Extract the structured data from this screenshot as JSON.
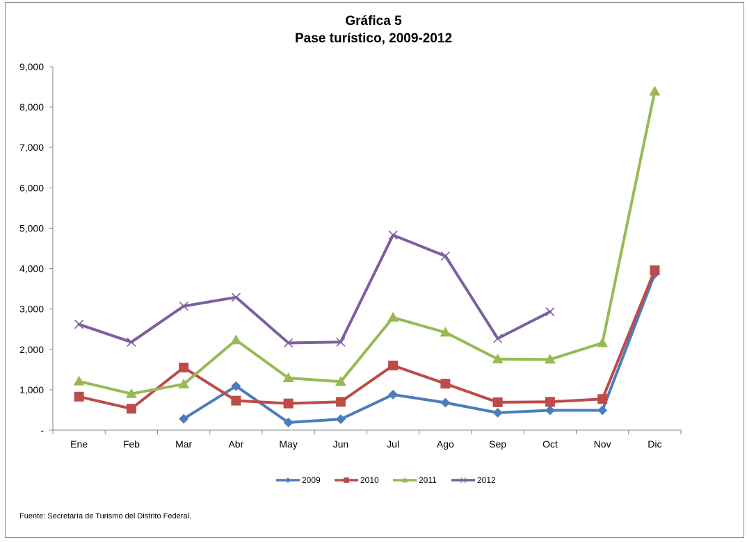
{
  "chart_data": {
    "type": "line",
    "title": "Gráfica 5",
    "subtitle": "Pase turístico, 2009-2012",
    "categories": [
      "Ene",
      "Feb",
      "Mar",
      "Abr",
      "May",
      "Jun",
      "Jul",
      "Ago",
      "Sep",
      "Oct",
      "Nov",
      "Dic"
    ],
    "y_tick_labels": [
      "-",
      "1,000",
      "2,000",
      "3,000",
      "4,000",
      "5,000",
      "6,000",
      "7,000",
      "8,000",
      "9,000"
    ],
    "ylim": [
      0,
      9000
    ],
    "legend_position": "bottom",
    "grid": false,
    "series": [
      {
        "name": "2009",
        "color": "#4a7ebb",
        "marker": "diamond",
        "values": [
          null,
          null,
          280,
          1090,
          190,
          270,
          880,
          680,
          430,
          490,
          490,
          3870
        ]
      },
      {
        "name": "2010",
        "color": "#be4b48",
        "marker": "square",
        "values": [
          830,
          530,
          1550,
          730,
          660,
          700,
          1600,
          1150,
          690,
          700,
          770,
          3960
        ]
      },
      {
        "name": "2011",
        "color": "#98b954",
        "marker": "triangle",
        "values": [
          1210,
          900,
          1140,
          2230,
          1290,
          1200,
          2790,
          2420,
          1760,
          1750,
          2160,
          8390
        ]
      },
      {
        "name": "2012",
        "color": "#7d5fa0",
        "marker": "x",
        "values": [
          2620,
          2180,
          3070,
          3290,
          2160,
          2180,
          4830,
          4310,
          2270,
          2930,
          null,
          null
        ]
      }
    ]
  },
  "source_note": "Fuente: Secretaría de Turismo del Distrito Federal."
}
